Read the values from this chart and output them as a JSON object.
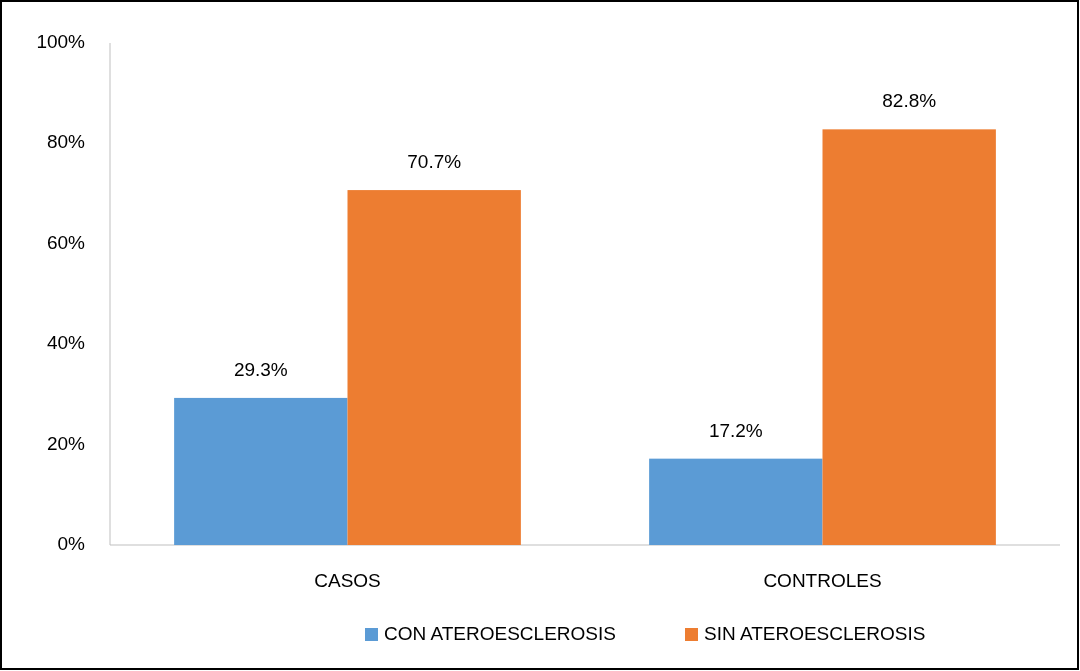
{
  "chart_data": {
    "type": "bar",
    "categories": [
      "CASOS",
      "CONTROLES"
    ],
    "series": [
      {
        "name": "CON ATEROESCLEROSIS",
        "color": "#5b9bd5",
        "values": [
          29.3,
          17.2
        ],
        "value_labels": [
          "29.3%",
          "17.2%"
        ]
      },
      {
        "name": "SIN ATEROESCLEROSIS",
        "color": "#ed7d31",
        "values": [
          70.7,
          82.8
        ],
        "value_labels": [
          "70.7%",
          "82.8%"
        ]
      }
    ],
    "ylim": [
      0,
      100
    ],
    "yticks": [
      {
        "value": 0,
        "label": "0%"
      },
      {
        "value": 20,
        "label": "20%"
      },
      {
        "value": 40,
        "label": "40%"
      },
      {
        "value": 60,
        "label": "60%"
      },
      {
        "value": 80,
        "label": "80%"
      },
      {
        "value": 100,
        "label": "100%"
      }
    ],
    "grid": false,
    "legend": "bottom"
  }
}
